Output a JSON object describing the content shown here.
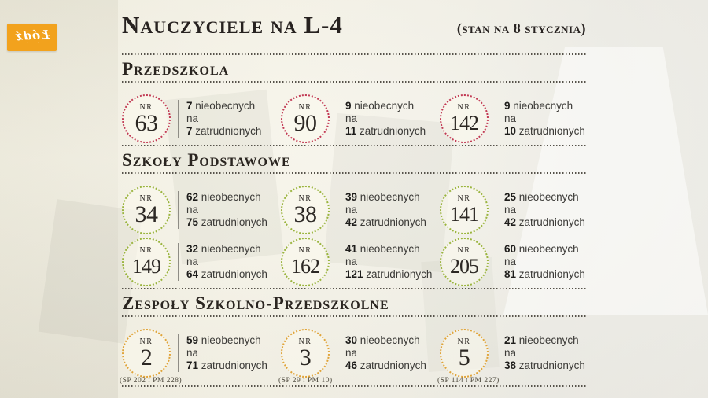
{
  "logo": {
    "text": "Łódź"
  },
  "header": {
    "title": "Nauczyciele na L-4",
    "subtitle": "(stan na 8 stycznia)"
  },
  "labels": {
    "nr": "NR",
    "absent": "nieobecnych",
    "conjunction": "na",
    "employed": "zatrudnionych"
  },
  "colors": {
    "przedszkola_accent": "#c23b55",
    "podstawowe_accent": "#9ab43e",
    "zespoly_accent": "#e0a43a",
    "logo_orange": "#f2a21d"
  },
  "sections": [
    {
      "label": "Przedszkola",
      "accent": "#c23b55",
      "items": [
        {
          "number": "63",
          "absent": "7",
          "employed": "7"
        },
        {
          "number": "90",
          "absent": "9",
          "employed": "11"
        },
        {
          "number": "142",
          "absent": "9",
          "employed": "10"
        }
      ]
    },
    {
      "label": "Szkoły Podstawowe",
      "accent": "#9ab43e",
      "items": [
        {
          "number": "34",
          "absent": "62",
          "employed": "75"
        },
        {
          "number": "38",
          "absent": "39",
          "employed": "42"
        },
        {
          "number": "141",
          "absent": "25",
          "employed": "42"
        },
        {
          "number": "149",
          "absent": "32",
          "employed": "64"
        },
        {
          "number": "162",
          "absent": "41",
          "employed": "121"
        },
        {
          "number": "205",
          "absent": "60",
          "employed": "81"
        }
      ]
    },
    {
      "label": "Zespoły Szkolno-Przedszkolne",
      "accent": "#e0a43a",
      "items": [
        {
          "number": "2",
          "absent": "59",
          "employed": "71",
          "caption": "(SP 202 i PM 228)"
        },
        {
          "number": "3",
          "absent": "30",
          "employed": "46",
          "caption": "(SP 29 i PM 10)"
        },
        {
          "number": "5",
          "absent": "21",
          "employed": "38",
          "caption": "(SP 114 i PM 227)"
        }
      ]
    }
  ]
}
